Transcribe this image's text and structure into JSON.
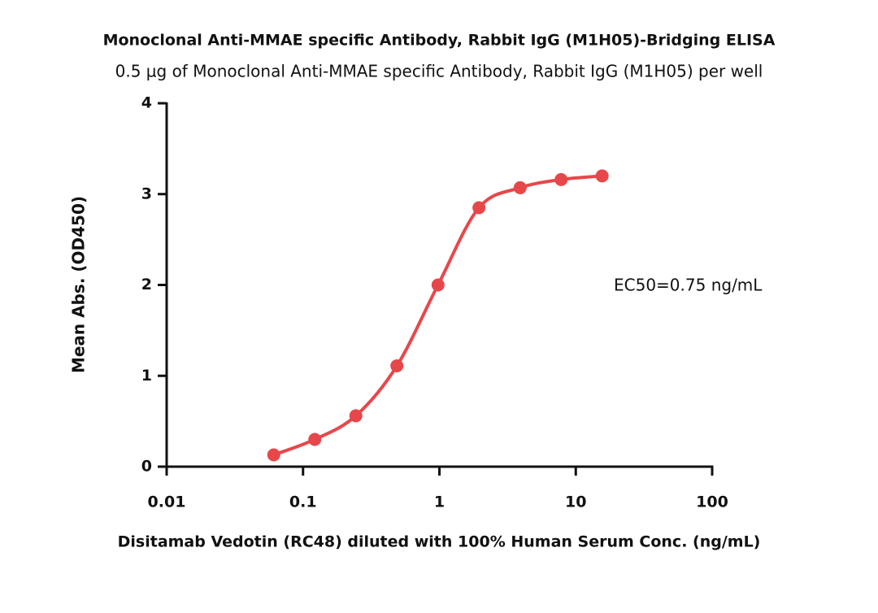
{
  "chart_data": {
    "type": "line",
    "title": "Monoclonal Anti-MMAE specific Antibody, Rabbit IgG (M1H05)-Bridging ELISA",
    "subtitle": "0.5 µg of Monoclonal Anti-MMAE specific Antibody, Rabbit IgG (M1H05) per well",
    "x_label": "Disitamab Vedotin (RC48) diluted with 100% Human Serum Conc. (ng/mL)",
    "y_label": "Mean Abs. (OD450)",
    "annotation": "EC50=0.75 ng/mL",
    "x_scale": "log",
    "x": [
      0.061,
      0.122,
      0.244,
      0.488,
      0.977,
      1.95,
      3.91,
      7.81,
      15.6
    ],
    "values": [
      0.13,
      0.3,
      0.56,
      1.11,
      2.0,
      2.85,
      3.07,
      3.16,
      3.2
    ],
    "color": "#e8474a",
    "xlim": [
      0.01,
      100
    ],
    "xticks": [
      0.01,
      0.1,
      1,
      10,
      100
    ],
    "ylim": [
      0,
      4
    ],
    "yticks": [
      0,
      1,
      2,
      3,
      4
    ]
  }
}
